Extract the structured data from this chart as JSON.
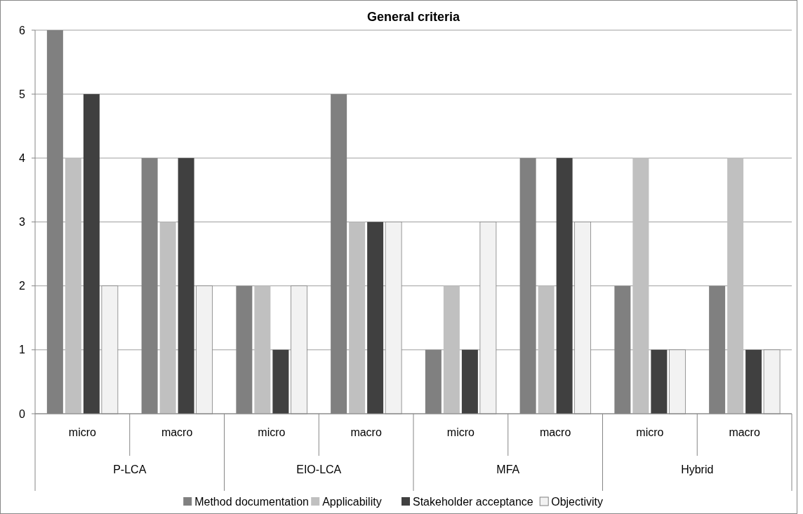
{
  "chart_data": {
    "type": "bar",
    "title": "General criteria",
    "categories": [
      "micro",
      "macro",
      "micro",
      "macro",
      "micro",
      "macro",
      "micro",
      "macro"
    ],
    "annotations": [
      "P-LCA",
      "EIO-LCA",
      "MFA",
      "Hybrid"
    ],
    "series": [
      {
        "name": "Method documentation",
        "color": "#808080",
        "values": [
          6,
          4,
          2,
          5,
          1,
          4,
          2,
          2
        ]
      },
      {
        "name": "Applicability",
        "color": "#c0c0c0",
        "values": [
          4,
          3,
          2,
          3,
          2,
          2,
          4,
          4
        ]
      },
      {
        "name": "Stakeholder acceptance",
        "color": "#404040",
        "values": [
          5,
          4,
          1,
          3,
          1,
          4,
          1,
          1
        ]
      },
      {
        "name": "Objectivity",
        "color": "#f2f2f2",
        "values": [
          2,
          2,
          2,
          3,
          3,
          3,
          1,
          1
        ]
      }
    ],
    "ylim": [
      0,
      6
    ],
    "yticks": [
      0,
      1,
      2,
      3,
      4,
      5,
      6
    ],
    "grid": "y",
    "legend": "bottom"
  }
}
